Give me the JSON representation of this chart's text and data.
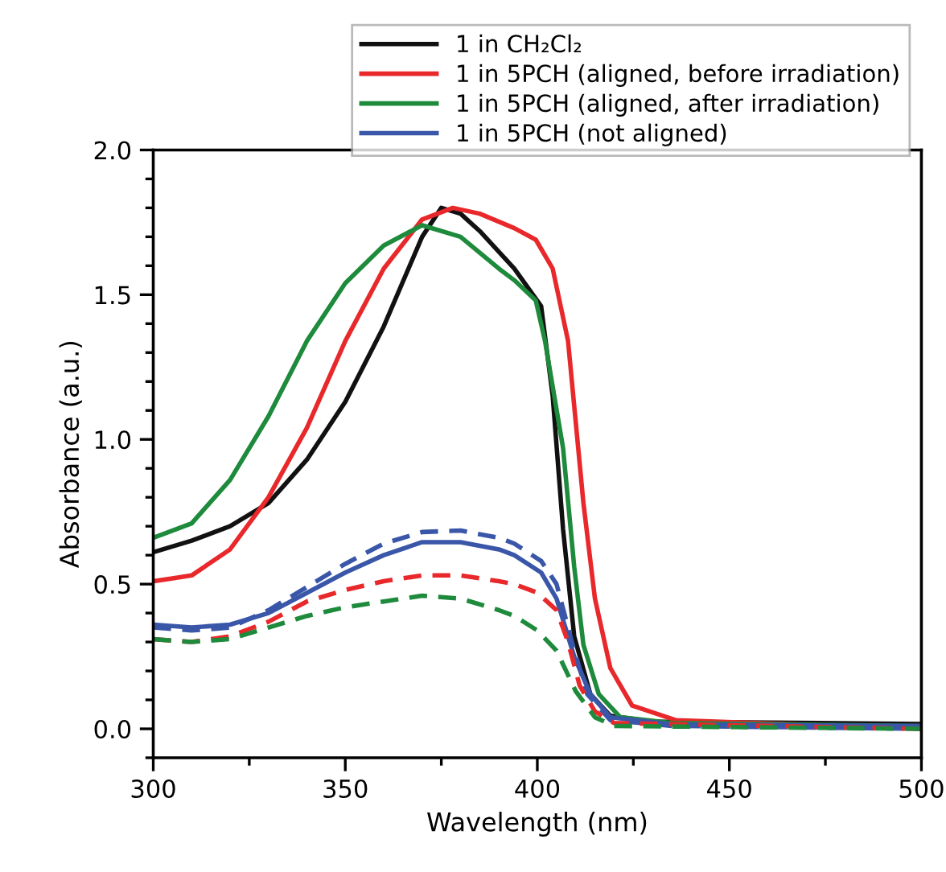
{
  "chart_data": {
    "type": "line",
    "xlabel": "Wavelength (nm)",
    "ylabel": "Absorbance (a.u.)",
    "xlim": [
      300,
      500
    ],
    "ylim": [
      -0.1,
      2.0
    ],
    "xticks": [
      300,
      350,
      400,
      450,
      500
    ],
    "yticks": [
      {
        "value": 0,
        "label": "0.0"
      },
      0.5,
      {
        "value": 1,
        "label": "1.0"
      },
      1.5,
      {
        "value": 2,
        "label": "2.0"
      }
    ],
    "grid": false,
    "legend": "top right",
    "marker": "none",
    "series": [
      {
        "name": "1 in CH₂Cl₂",
        "color": "#111111",
        "line_style": "solid",
        "x": [
          300,
          310,
          320,
          330,
          340,
          350,
          360,
          370,
          375,
          380,
          385,
          394,
          401,
          404,
          406.7,
          409.6,
          413.8,
          419,
          430,
          500
        ],
        "values": [
          0.61,
          0.65,
          0.7,
          0.78,
          0.93,
          1.13,
          1.39,
          1.7,
          1.8,
          1.78,
          1.72,
          1.59,
          1.46,
          1.15,
          0.69,
          0.32,
          0.12,
          0.045,
          0.025,
          0.017
        ]
      },
      {
        "name": "1 in 5PCH (aligned, before irradiation)",
        "color": "#e8282a",
        "line_style": "solid",
        "x": [
          300,
          305,
          310,
          320,
          330,
          340,
          350,
          360,
          370,
          378,
          385,
          394,
          399.6,
          404,
          408,
          412,
          415,
          419,
          424.7,
          436,
          500
        ],
        "values": [
          0.51,
          0.52,
          0.53,
          0.62,
          0.8,
          1.04,
          1.34,
          1.59,
          1.76,
          1.8,
          1.78,
          1.73,
          1.69,
          1.59,
          1.34,
          0.78,
          0.45,
          0.21,
          0.08,
          0.03,
          0.0
        ]
      },
      {
        "name": "1 in 5PCH (aligned, after irradiation)",
        "color": "#1e8a3c",
        "line_style": "solid",
        "x": [
          300,
          310,
          320,
          330,
          340,
          350,
          360,
          370,
          380,
          390,
          394,
          399.6,
          402,
          406.7,
          409.6,
          412,
          416,
          421.6,
          435,
          500
        ],
        "values": [
          0.66,
          0.71,
          0.86,
          1.08,
          1.34,
          1.54,
          1.67,
          1.74,
          1.7,
          1.59,
          1.55,
          1.48,
          1.34,
          0.97,
          0.56,
          0.29,
          0.12,
          0.04,
          0.02,
          0.01
        ]
      },
      {
        "name": "1 in 5PCH (not aligned)",
        "color": "#3a56a8",
        "line_style": "solid",
        "x": [
          300,
          310,
          320,
          330,
          340,
          350,
          360,
          370,
          380,
          390,
          394,
          401,
          405,
          409.6,
          413.8,
          419,
          435,
          500
        ],
        "values": [
          0.36,
          0.35,
          0.36,
          0.4,
          0.47,
          0.54,
          0.6,
          0.645,
          0.645,
          0.62,
          0.6,
          0.54,
          0.45,
          0.25,
          0.12,
          0.04,
          0.015,
          0.01
        ]
      },
      {
        "color": "#3a56a8",
        "line_style": "dashed",
        "x": [
          300,
          310,
          320,
          330,
          340,
          350,
          360,
          370,
          380,
          390,
          394,
          401,
          405,
          409,
          413,
          419,
          435,
          500
        ],
        "values": [
          0.35,
          0.34,
          0.35,
          0.41,
          0.49,
          0.57,
          0.64,
          0.68,
          0.685,
          0.66,
          0.64,
          0.58,
          0.5,
          0.3,
          0.12,
          0.03,
          0.01,
          0.0
        ]
      },
      {
        "color": "#e8282a",
        "line_style": "dashed",
        "x": [
          300,
          310,
          320,
          330,
          340,
          350,
          360,
          370,
          380,
          390,
          394,
          400,
          405,
          408,
          411,
          415,
          420,
          500
        ],
        "values": [
          0.31,
          0.3,
          0.32,
          0.37,
          0.44,
          0.48,
          0.51,
          0.53,
          0.53,
          0.51,
          0.5,
          0.47,
          0.41,
          0.3,
          0.15,
          0.06,
          0.02,
          0.0
        ]
      },
      {
        "color": "#1e8a3c",
        "line_style": "dashed",
        "x": [
          300,
          310,
          320,
          330,
          340,
          350,
          360,
          370,
          380,
          390,
          394,
          400,
          405,
          410,
          415,
          420,
          500
        ],
        "values": [
          0.31,
          0.3,
          0.31,
          0.35,
          0.39,
          0.42,
          0.44,
          0.46,
          0.45,
          0.41,
          0.39,
          0.34,
          0.27,
          0.13,
          0.04,
          0.01,
          0.0
        ]
      }
    ]
  }
}
